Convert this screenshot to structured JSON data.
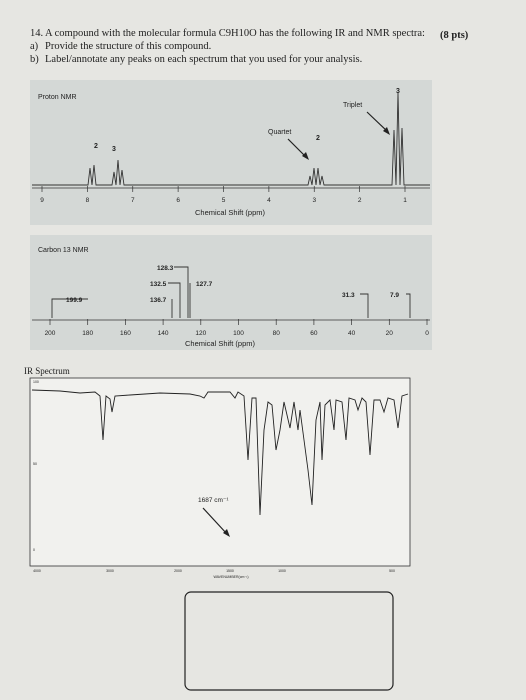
{
  "question": {
    "number": "14.",
    "text": "A compound with the molecular formula C9H10O has the following IR and NMR spectra:",
    "points": "(8 pts)",
    "parts": [
      {
        "label": "a)",
        "text": "Provide the structure of this compound."
      },
      {
        "label": "b)",
        "text": "Label/annotate any peaks on each spectrum that you used for your analysis."
      }
    ]
  },
  "proton_nmr": {
    "title": "Proton NMR",
    "annotations": [
      "Triplet",
      "Quartet"
    ],
    "integrations": [
      "2",
      "3",
      "2",
      "3"
    ],
    "axis_ticks": [
      9,
      8,
      7,
      6,
      5,
      4,
      3,
      2,
      1
    ],
    "axis_label": "Chemical Shift (ppm)"
  },
  "carbon_nmr": {
    "title": "Carbon 13 NMR",
    "peak_labels": [
      "128.3",
      "132.5",
      "127.7",
      "136.7",
      "199.9",
      "31.3",
      "7.9"
    ],
    "axis_ticks": [
      200,
      180,
      160,
      140,
      120,
      100,
      80,
      60,
      40,
      20,
      0
    ],
    "axis_label": "Chemical Shift (ppm)"
  },
  "ir_spectrum": {
    "title": "IR Spectrum",
    "annotation": "1687 cm⁻¹",
    "y_ticks": [
      100,
      50,
      0
    ],
    "x_ticks": [
      4000,
      3000,
      2000,
      1500,
      1000,
      500
    ],
    "x_label": "WAVENUMBER(cm⁻¹)"
  }
}
